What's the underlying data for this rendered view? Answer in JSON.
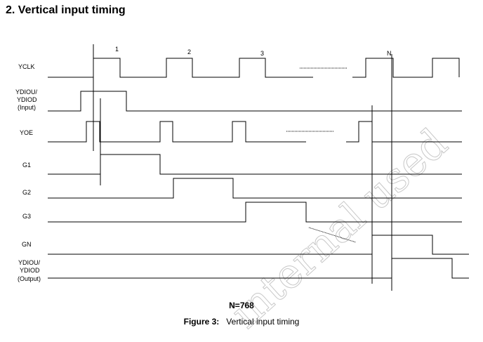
{
  "heading": "2. Vertical input timing",
  "signals": {
    "yclk": "YCLK",
    "ydio_in": [
      "YDIOU/",
      "YDIOD",
      "(Input)"
    ],
    "yoe": "YOE",
    "g1": "G1",
    "g2": "G2",
    "g3": "G3",
    "gn": "GN",
    "ydio_out": [
      "YDIOU/",
      "YDIOD",
      "(Output)"
    ]
  },
  "pulse_numbers": [
    "1",
    "2",
    "3",
    "N"
  ],
  "watermark": "internal used",
  "n_value": "N=768",
  "caption": {
    "label": "Figure 3:",
    "text": "Vertical input timing"
  }
}
